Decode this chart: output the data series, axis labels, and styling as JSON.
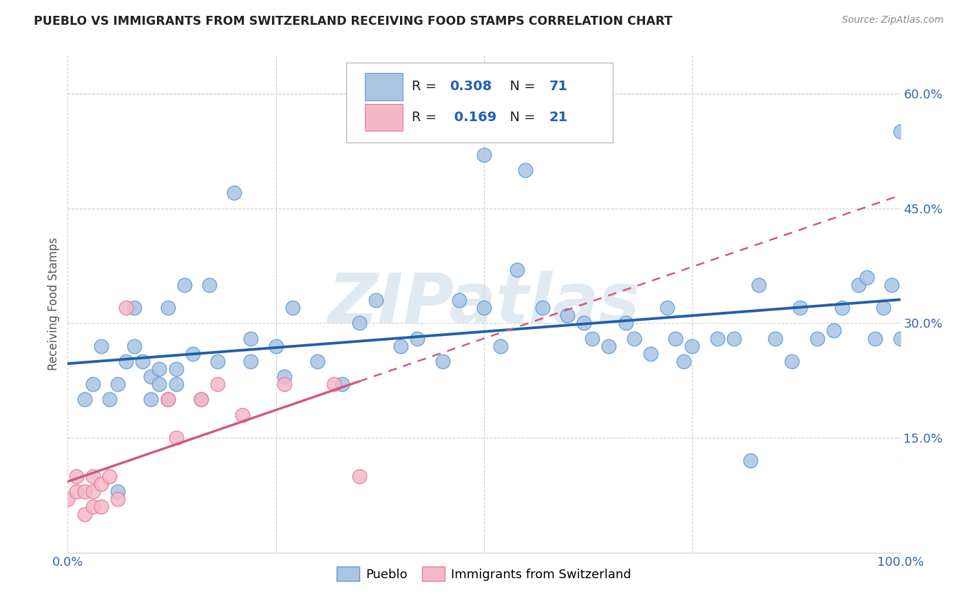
{
  "title": "PUEBLO VS IMMIGRANTS FROM SWITZERLAND RECEIVING FOOD STAMPS CORRELATION CHART",
  "source": "Source: ZipAtlas.com",
  "ylabel": "Receiving Food Stamps",
  "xlim": [
    0.0,
    1.0
  ],
  "ylim": [
    0.0,
    0.65
  ],
  "x_ticks": [
    0.0,
    0.25,
    0.5,
    0.75,
    1.0
  ],
  "x_tick_labels": [
    "0.0%",
    "",
    "",
    "",
    "100.0%"
  ],
  "y_ticks": [
    0.15,
    0.3,
    0.45,
    0.6
  ],
  "y_tick_labels": [
    "15.0%",
    "30.0%",
    "45.0%",
    "60.0%"
  ],
  "legend1_R": "0.308",
  "legend1_N": "71",
  "legend2_R": "0.169",
  "legend2_N": "21",
  "pueblo_color": "#aac4e2",
  "pueblo_edge_color": "#5b9bd5",
  "swiss_color": "#f4b8c8",
  "swiss_edge_color": "#e8789a",
  "pueblo_line_color": "#2060a8",
  "swiss_line_color": "#d05880",
  "watermark_text": "ZIPatlas",
  "pueblo_x": [
    0.02,
    0.03,
    0.04,
    0.05,
    0.06,
    0.06,
    0.07,
    0.08,
    0.08,
    0.09,
    0.1,
    0.1,
    0.11,
    0.11,
    0.12,
    0.12,
    0.13,
    0.13,
    0.14,
    0.15,
    0.16,
    0.17,
    0.18,
    0.2,
    0.22,
    0.22,
    0.25,
    0.26,
    0.27,
    0.3,
    0.33,
    0.35,
    0.37,
    0.4,
    0.42,
    0.45,
    0.47,
    0.5,
    0.52,
    0.54,
    0.55,
    0.57,
    0.6,
    0.62,
    0.63,
    0.65,
    0.67,
    0.68,
    0.7,
    0.72,
    0.73,
    0.74,
    0.75,
    0.78,
    0.8,
    0.82,
    0.83,
    0.85,
    0.87,
    0.88,
    0.9,
    0.92,
    0.93,
    0.95,
    0.96,
    0.97,
    0.98,
    0.99,
    1.0,
    1.0,
    0.5
  ],
  "pueblo_y": [
    0.2,
    0.22,
    0.27,
    0.2,
    0.22,
    0.08,
    0.25,
    0.27,
    0.32,
    0.25,
    0.2,
    0.23,
    0.22,
    0.24,
    0.32,
    0.2,
    0.22,
    0.24,
    0.35,
    0.26,
    0.2,
    0.35,
    0.25,
    0.47,
    0.25,
    0.28,
    0.27,
    0.23,
    0.32,
    0.25,
    0.22,
    0.3,
    0.33,
    0.27,
    0.28,
    0.25,
    0.33,
    0.32,
    0.27,
    0.37,
    0.5,
    0.32,
    0.31,
    0.3,
    0.28,
    0.27,
    0.3,
    0.28,
    0.26,
    0.32,
    0.28,
    0.25,
    0.27,
    0.28,
    0.28,
    0.12,
    0.35,
    0.28,
    0.25,
    0.32,
    0.28,
    0.29,
    0.32,
    0.35,
    0.36,
    0.28,
    0.32,
    0.35,
    0.28,
    0.55,
    0.52
  ],
  "swiss_x": [
    0.0,
    0.01,
    0.01,
    0.02,
    0.02,
    0.03,
    0.03,
    0.03,
    0.04,
    0.04,
    0.05,
    0.06,
    0.07,
    0.12,
    0.13,
    0.16,
    0.18,
    0.21,
    0.26,
    0.32,
    0.35
  ],
  "swiss_y": [
    0.07,
    0.08,
    0.1,
    0.05,
    0.08,
    0.06,
    0.08,
    0.1,
    0.06,
    0.09,
    0.1,
    0.07,
    0.32,
    0.2,
    0.15,
    0.2,
    0.22,
    0.18,
    0.22,
    0.22,
    0.1
  ]
}
